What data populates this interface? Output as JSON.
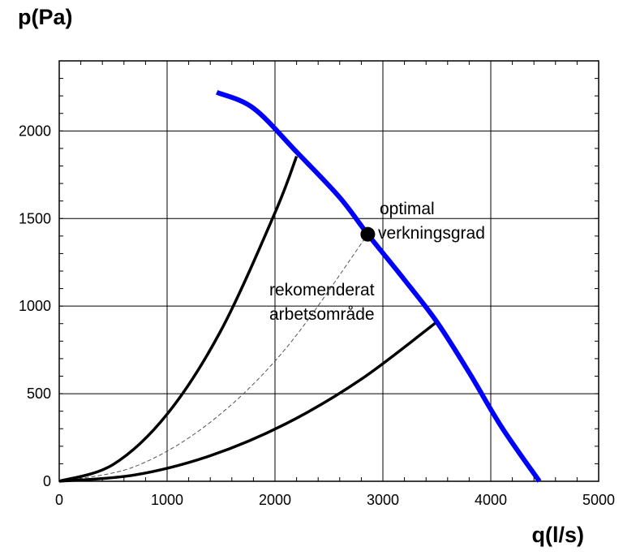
{
  "chart_data": {
    "type": "line",
    "title": "",
    "xlabel": "q(l/s)",
    "ylabel": "p(Pa)",
    "xlim": [
      0,
      5000
    ],
    "ylim": [
      0,
      2400
    ],
    "x_ticks": [
      0,
      1000,
      2000,
      3000,
      4000,
      5000
    ],
    "x_tick_labels": [
      "0",
      "1000",
      "2000",
      "3000",
      "4000",
      "5000"
    ],
    "y_ticks": [
      0,
      500,
      1000,
      1500,
      2000
    ],
    "y_tick_labels": [
      "0",
      "500",
      "1000",
      "1500",
      "2000"
    ],
    "grid": true,
    "series": [
      {
        "style": "fan-curve",
        "color": "#0000ff",
        "x": [
          1460,
          1800,
          2200,
          2600,
          2860,
          3200,
          3500,
          3800,
          4100,
          4450
        ],
        "y": [
          2220,
          2130,
          1880,
          1620,
          1410,
          1150,
          910,
          620,
          310,
          0
        ]
      },
      {
        "style": "system-curve-upper",
        "color": "#000000",
        "x": [
          0,
          500,
          1000,
          1500,
          2000,
          2200
        ],
        "y": [
          0,
          96,
          383,
          862,
          1533,
          1855
        ]
      },
      {
        "style": "system-curve-optimal",
        "color": "#555555",
        "dashed": true,
        "x": [
          0,
          700,
          1400,
          2100,
          2860
        ],
        "y": [
          0,
          84,
          337,
          758,
          1410
        ]
      },
      {
        "style": "system-curve-lower",
        "color": "#000000",
        "x": [
          0,
          700,
          1400,
          2100,
          2800,
          3500
        ],
        "y": [
          0,
          36,
          146,
          328,
          583,
          910
        ]
      }
    ],
    "markers": [
      {
        "x": 2860,
        "y": 1410,
        "label": "optimal verkningsgrad"
      }
    ],
    "annotations": [
      {
        "lines": [
          "optimal",
          "verkningsgrad"
        ]
      },
      {
        "lines": [
          "rekomenderat",
          "arbetsområde"
        ]
      }
    ]
  }
}
